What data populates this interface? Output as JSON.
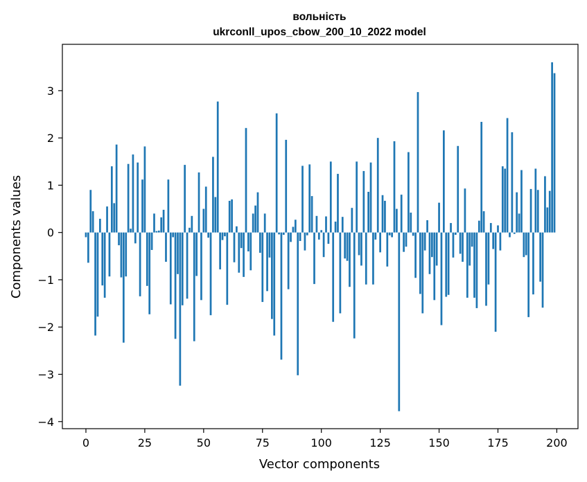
{
  "chart_data": {
    "type": "bar",
    "title": "вольність",
    "subtitle": "ukrconll_upos_cbow_200_10_2022 model",
    "xlabel": "Vector components",
    "ylabel": "Components values",
    "xlim": [
      -10,
      209
    ],
    "ylim": [
      -4.15,
      3.98
    ],
    "xticks": [
      0,
      25,
      50,
      75,
      100,
      125,
      150,
      175,
      200
    ],
    "yticks": [
      -4,
      -3,
      -2,
      -1,
      0,
      1,
      2,
      3
    ],
    "xtick_labels": [
      "0",
      "25",
      "50",
      "75",
      "100",
      "125",
      "150",
      "175",
      "200"
    ],
    "ytick_labels": [
      "−4",
      "−3",
      "−2",
      "−1",
      "0",
      "1",
      "2",
      "3"
    ],
    "grid": false,
    "bar_color": "#1f77b4",
    "x": [
      0,
      1,
      2,
      3,
      4,
      5,
      6,
      7,
      8,
      9,
      10,
      11,
      12,
      13,
      14,
      15,
      16,
      17,
      18,
      19,
      20,
      21,
      22,
      23,
      24,
      25,
      26,
      27,
      28,
      29,
      30,
      31,
      32,
      33,
      34,
      35,
      36,
      37,
      38,
      39,
      40,
      41,
      42,
      43,
      44,
      45,
      46,
      47,
      48,
      49,
      50,
      51,
      52,
      53,
      54,
      55,
      56,
      57,
      58,
      59,
      60,
      61,
      62,
      63,
      64,
      65,
      66,
      67,
      68,
      69,
      70,
      71,
      72,
      73,
      74,
      75,
      76,
      77,
      78,
      79,
      80,
      81,
      82,
      83,
      84,
      85,
      86,
      87,
      88,
      89,
      90,
      91,
      92,
      93,
      94,
      95,
      96,
      97,
      98,
      99,
      100,
      101,
      102,
      103,
      104,
      105,
      106,
      107,
      108,
      109,
      110,
      111,
      112,
      113,
      114,
      115,
      116,
      117,
      118,
      119,
      120,
      121,
      122,
      123,
      124,
      125,
      126,
      127,
      128,
      129,
      130,
      131,
      132,
      133,
      134,
      135,
      136,
      137,
      138,
      139,
      140,
      141,
      142,
      143,
      144,
      145,
      146,
      147,
      148,
      149,
      150,
      151,
      152,
      153,
      154,
      155,
      156,
      157,
      158,
      159,
      160,
      161,
      162,
      163,
      164,
      165,
      166,
      167,
      168,
      169,
      170,
      171,
      172,
      173,
      174,
      175,
      176,
      177,
      178,
      179,
      180,
      181,
      182,
      183,
      184,
      185,
      186,
      187,
      188,
      189,
      190,
      191,
      192,
      193,
      194,
      195,
      196,
      197,
      198,
      199
    ],
    "values": [
      -0.1,
      -0.64,
      0.9,
      0.45,
      -2.18,
      -1.78,
      0.29,
      -1.12,
      -1.38,
      0.55,
      -0.93,
      1.4,
      0.62,
      1.86,
      -0.27,
      -0.95,
      -2.33,
      -0.93,
      1.45,
      0.08,
      1.65,
      -0.23,
      1.48,
      -1.35,
      1.12,
      1.82,
      -1.13,
      -1.73,
      -0.37,
      0.4,
      0.03,
      0.04,
      0.32,
      0.48,
      -0.62,
      1.12,
      -1.52,
      -0.1,
      -2.25,
      -0.88,
      -3.24,
      -1.54,
      1.43,
      -1.4,
      0.1,
      0.35,
      -2.3,
      -0.92,
      1.27,
      -1.43,
      0.5,
      0.97,
      -0.11,
      -1.75,
      1.6,
      0.75,
      2.77,
      -0.78,
      -0.16,
      -0.08,
      -1.53,
      0.67,
      0.7,
      -0.63,
      0.13,
      -0.85,
      -0.33,
      -0.94,
      2.21,
      -0.4,
      -0.8,
      0.4,
      0.57,
      0.85,
      -0.43,
      -1.47,
      0.4,
      -1.24,
      -0.53,
      -1.83,
      -2.18,
      2.52,
      -0.04,
      -2.69,
      -0.05,
      1.96,
      -1.2,
      -0.2,
      0.12,
      0.27,
      -3.02,
      -0.18,
      1.41,
      -0.38,
      -0.06,
      1.44,
      0.77,
      -1.09,
      0.35,
      -0.15,
      0.05,
      -0.52,
      0.34,
      -0.24,
      1.5,
      -1.89,
      0.23,
      1.24,
      -1.71,
      0.33,
      -0.55,
      -0.6,
      -1.15,
      0.52,
      -2.24,
      1.5,
      -0.48,
      -0.7,
      1.3,
      -1.1,
      0.86,
      1.48,
      -1.1,
      -0.15,
      2.0,
      -0.42,
      0.79,
      0.67,
      -0.72,
      -0.06,
      -0.1,
      1.93,
      0.5,
      -3.78,
      0.8,
      -0.41,
      -0.3,
      1.7,
      0.42,
      -0.07,
      -0.96,
      2.97,
      -1.3,
      -1.71,
      -0.38,
      0.26,
      -0.88,
      -0.52,
      -1.43,
      -0.7,
      0.63,
      -1.96,
      2.16,
      -1.36,
      -1.32,
      0.2,
      -0.53,
      -0.05,
      1.83,
      -0.45,
      -0.62,
      0.93,
      -1.38,
      -0.7,
      -0.3,
      -1.38,
      -1.6,
      0.25,
      2.34,
      0.45,
      -1.55,
      -1.1,
      0.2,
      -0.35,
      -2.1,
      0.15,
      -0.38,
      1.4,
      1.35,
      2.42,
      -0.1,
      2.12,
      -0.03,
      0.85,
      0.4,
      1.32,
      -0.52,
      -0.48,
      -1.79,
      0.92,
      -1.31,
      1.35,
      0.9,
      -1.04,
      -1.59,
      1.19,
      0.53,
      0.88,
      3.6,
      3.37
    ]
  }
}
